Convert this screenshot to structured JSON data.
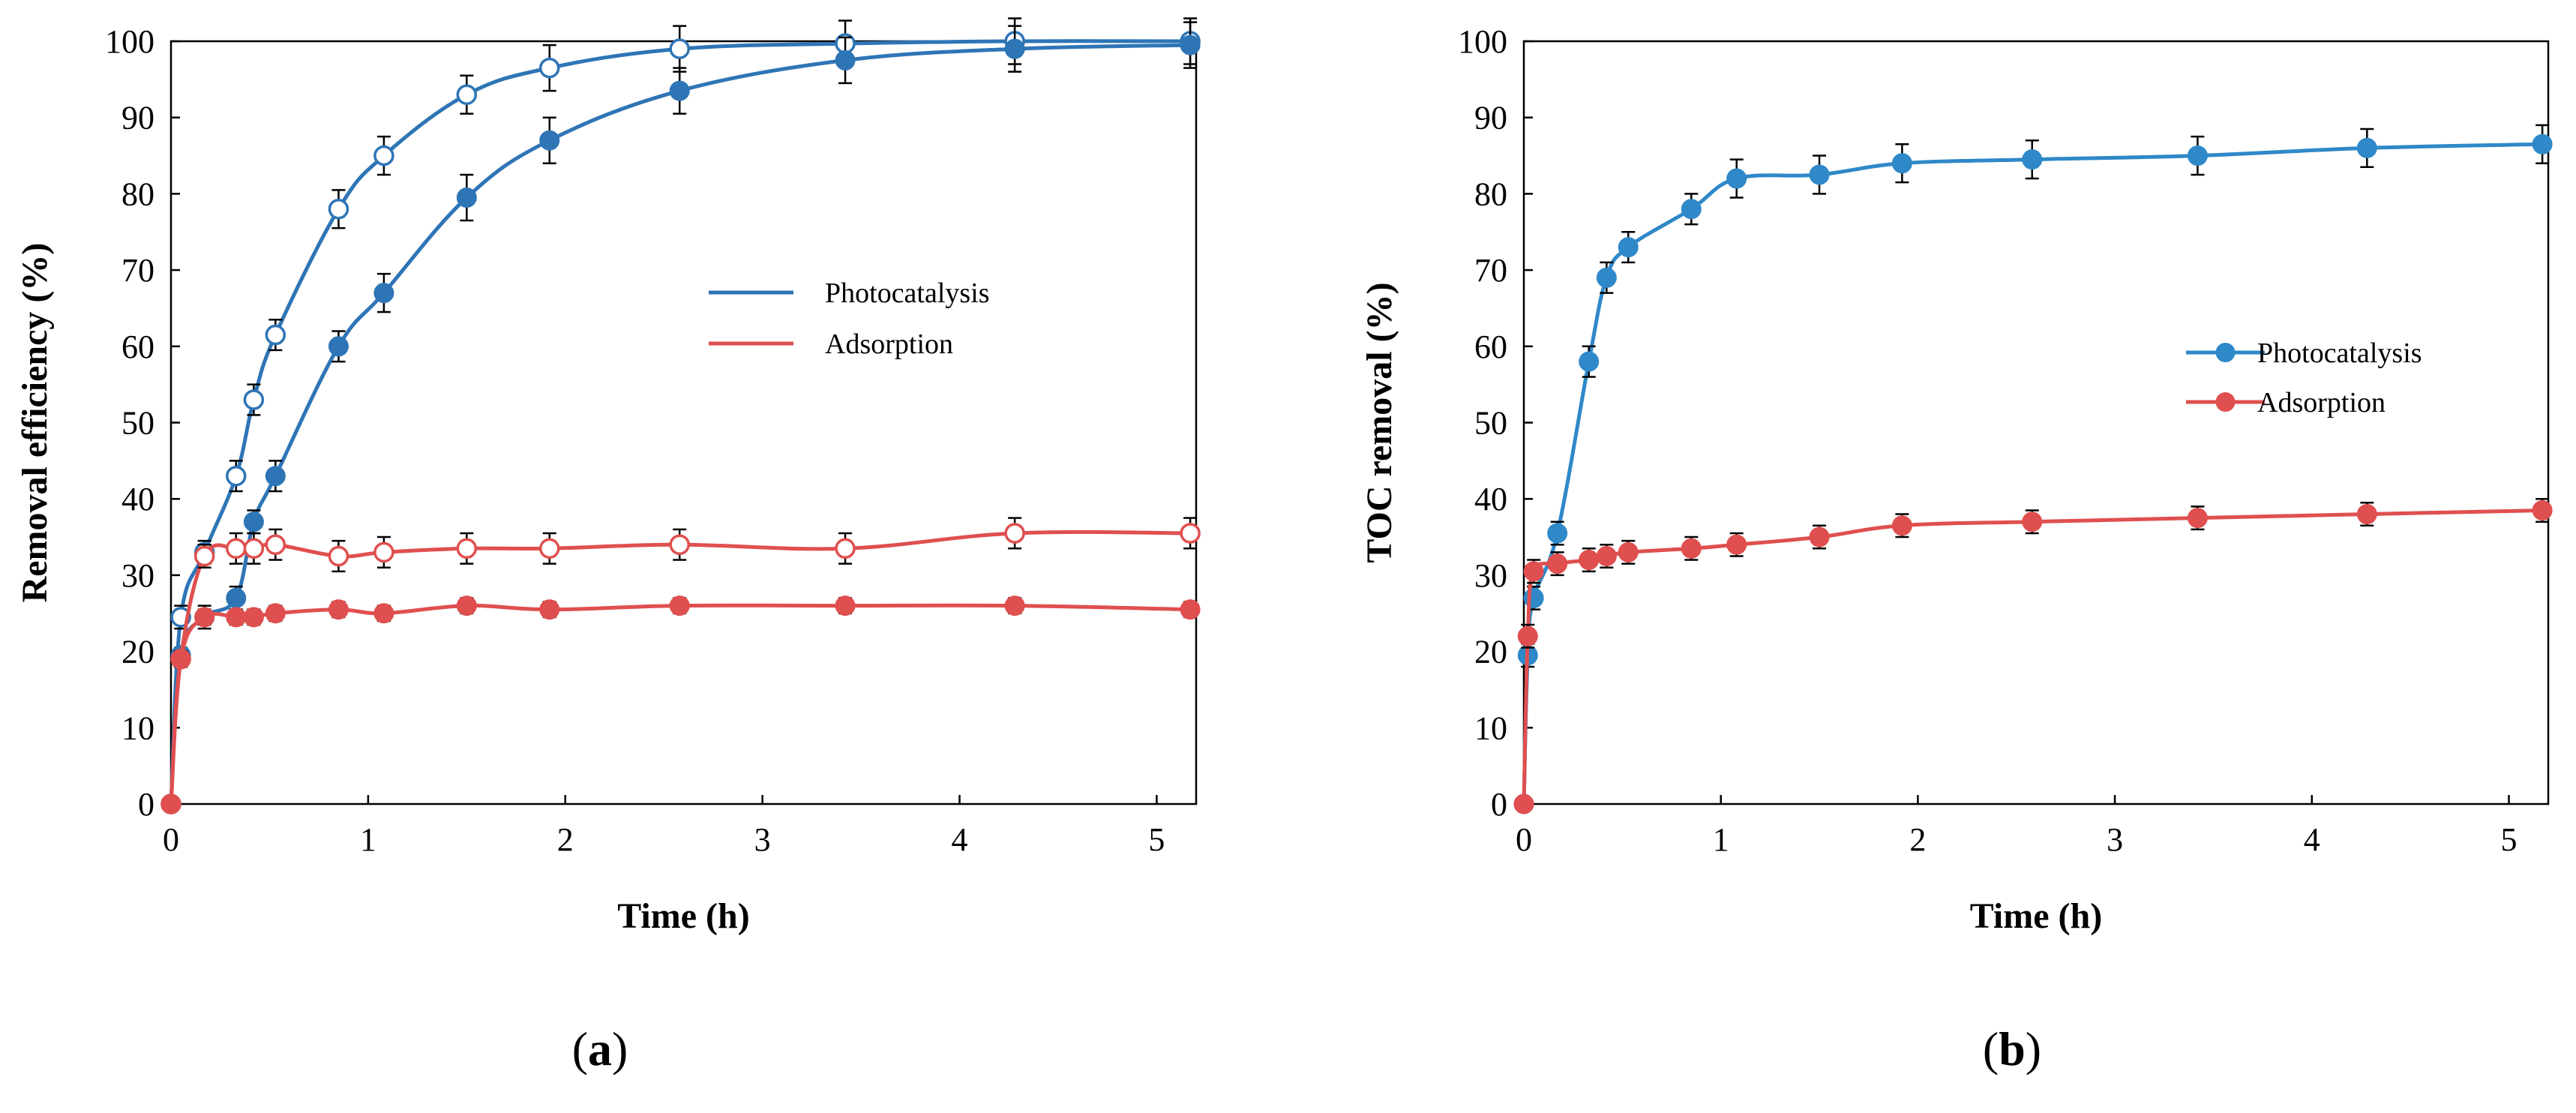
{
  "colors": {
    "photocatalysis": "#2E75B6",
    "photocatalysis_b": "#2F88C8",
    "adsorption": "#E04F4F",
    "axis": "#000000",
    "errorbar": "#000000"
  },
  "chart_data": [
    {
      "type": "line",
      "panel_label": "(a)",
      "panel_letter": "a",
      "xlabel": "Time (h)",
      "ylabel": "Removal efficiency (%)",
      "xlim": [
        0,
        5.2
      ],
      "ylim": [
        0,
        100
      ],
      "xticks": [
        0,
        1,
        2,
        3,
        4,
        5
      ],
      "yticks": [
        0,
        10,
        20,
        30,
        40,
        50,
        60,
        70,
        80,
        90,
        100
      ],
      "grid": false,
      "legend": {
        "position": "center-right",
        "style": "line",
        "entries": [
          "Photocatalysis",
          "Adsorption"
        ]
      },
      "series": [
        {
          "name": "Photocatalysis (open markers)",
          "color_key": "photocatalysis",
          "marker": "open-circle",
          "x": [
            0,
            0.05,
            0.17,
            0.33,
            0.42,
            0.53,
            0.85,
            1.08,
            1.5,
            1.92,
            2.58,
            3.42,
            4.28,
            5.17
          ],
          "y": [
            0,
            24.5,
            33,
            43,
            53,
            61.5,
            78,
            85,
            93,
            96.5,
            99,
            99.7,
            100,
            100
          ],
          "err": [
            0,
            1.5,
            1.5,
            2,
            2,
            2,
            2.5,
            2.5,
            2.5,
            3,
            3,
            3,
            3,
            3
          ]
        },
        {
          "name": "Photocatalysis (filled markers)",
          "color_key": "photocatalysis",
          "marker": "filled-circle",
          "x": [
            0,
            0.05,
            0.17,
            0.33,
            0.42,
            0.53,
            0.85,
            1.08,
            1.5,
            1.92,
            2.58,
            3.42,
            4.28,
            5.17
          ],
          "y": [
            0,
            19.5,
            24.5,
            27,
            37,
            43,
            60,
            67,
            79.5,
            87,
            93.5,
            97.5,
            99,
            99.5
          ],
          "err": [
            0,
            1,
            1.5,
            1.5,
            1.5,
            2,
            2,
            2.5,
            3,
            3,
            3,
            3,
            3,
            3
          ]
        },
        {
          "name": "Adsorption (open markers)",
          "color_key": "adsorption",
          "marker": "open-circle",
          "x": [
            0,
            0.05,
            0.17,
            0.33,
            0.42,
            0.53,
            0.85,
            1.08,
            1.5,
            1.92,
            2.58,
            3.42,
            4.28,
            5.17
          ],
          "y": [
            0,
            19,
            32.5,
            33.5,
            33.5,
            34,
            32.5,
            33,
            33.5,
            33.5,
            34,
            33.5,
            35.5,
            35.5
          ],
          "err": [
            0,
            1,
            1.5,
            2,
            2,
            2,
            2,
            2,
            2,
            2,
            2,
            2,
            2,
            2
          ]
        },
        {
          "name": "Adsorption (filled markers)",
          "color_key": "adsorption",
          "marker": "filled-circle",
          "x": [
            0,
            0.05,
            0.17,
            0.33,
            0.42,
            0.53,
            0.85,
            1.08,
            1.5,
            1.92,
            2.58,
            3.42,
            4.28,
            5.17
          ],
          "y": [
            0,
            19,
            24.5,
            24.5,
            24.5,
            25,
            25.5,
            25,
            26,
            25.5,
            26,
            26,
            26,
            25.5
          ],
          "err": [
            0,
            1,
            1,
            1,
            1,
            1,
            1,
            1,
            1,
            1,
            1,
            1,
            1,
            1
          ]
        }
      ]
    },
    {
      "type": "line",
      "panel_label": "(b)",
      "panel_letter": "b",
      "xlabel": "Time (h)",
      "ylabel": "TOC removal (%)",
      "xlim": [
        0,
        5.2
      ],
      "ylim": [
        0,
        100
      ],
      "xticks": [
        0,
        1,
        2,
        3,
        4,
        5
      ],
      "yticks": [
        0,
        10,
        20,
        30,
        40,
        50,
        60,
        70,
        80,
        90,
        100
      ],
      "grid": false,
      "legend": {
        "position": "center-right",
        "style": "line-marker",
        "entries": [
          "Photocatalysis",
          "Adsorption"
        ]
      },
      "series": [
        {
          "name": "Photocatalysis",
          "color_key": "photocatalysis_b",
          "marker": "filled-circle",
          "x": [
            0,
            0.02,
            0.05,
            0.17,
            0.33,
            0.42,
            0.53,
            0.85,
            1.08,
            1.5,
            1.92,
            2.58,
            3.42,
            4.28,
            5.17
          ],
          "y": [
            0,
            19.5,
            27,
            35.5,
            58,
            69,
            73,
            78,
            82,
            82.5,
            84,
            84.5,
            85,
            86,
            86.5
          ],
          "err": [
            0,
            1.5,
            1.5,
            1.5,
            2,
            2,
            2,
            2,
            2.5,
            2.5,
            2.5,
            2.5,
            2.5,
            2.5,
            2.5
          ]
        },
        {
          "name": "Adsorption",
          "color_key": "adsorption",
          "marker": "filled-circle",
          "x": [
            0,
            0.02,
            0.05,
            0.17,
            0.33,
            0.42,
            0.53,
            0.85,
            1.08,
            1.5,
            1.92,
            2.58,
            3.42,
            4.28,
            5.17
          ],
          "y": [
            0,
            22,
            30.5,
            31.5,
            32,
            32.5,
            33,
            33.5,
            34,
            35,
            36.5,
            37,
            37.5,
            38,
            38.5
          ],
          "err": [
            0,
            1.5,
            1.5,
            1.5,
            1.5,
            1.5,
            1.5,
            1.5,
            1.5,
            1.5,
            1.5,
            1.5,
            1.5,
            1.5,
            1.5
          ]
        }
      ]
    }
  ]
}
